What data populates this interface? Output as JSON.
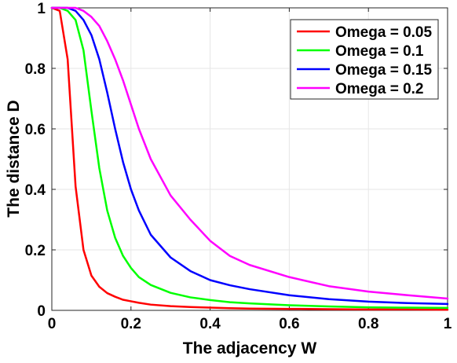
{
  "chart_data": {
    "type": "line",
    "title": "",
    "xlabel": "The adjacency W",
    "ylabel": "The distance D",
    "xlim": [
      0,
      1
    ],
    "ylim": [
      0,
      1
    ],
    "xticks": [
      0,
      0.2,
      0.4,
      0.6,
      0.8,
      1
    ],
    "xtick_labels": [
      "0",
      "0.2",
      "0.4",
      "0.6",
      "0.8",
      "1"
    ],
    "yticks": [
      0,
      0.2,
      0.4,
      0.6,
      0.8,
      1
    ],
    "ytick_labels": [
      "0",
      "0.2",
      "0.4",
      "0.6",
      "0.8",
      "1"
    ],
    "grid": true,
    "legend_position": "top-right",
    "x": [
      0,
      0.02,
      0.04,
      0.06,
      0.08,
      0.1,
      0.12,
      0.14,
      0.16,
      0.18,
      0.2,
      0.22,
      0.25,
      0.3,
      0.35,
      0.4,
      0.45,
      0.5,
      0.6,
      0.7,
      0.8,
      0.9,
      1.0
    ],
    "series": [
      {
        "name": "Omega = 0.05",
        "color": "#ff0000",
        "values": [
          1,
          0.99,
          0.83,
          0.41,
          0.2,
          0.115,
          0.078,
          0.057,
          0.045,
          0.035,
          0.03,
          0.025,
          0.019,
          0.014,
          0.011,
          0.009,
          0.007,
          0.006,
          0.005,
          0.004,
          0.003,
          0.003,
          0.002
        ]
      },
      {
        "name": "Omega = 0.1",
        "color": "#00ff00",
        "values": [
          1,
          1,
          0.99,
          0.96,
          0.86,
          0.66,
          0.47,
          0.33,
          0.24,
          0.18,
          0.14,
          0.11,
          0.084,
          0.058,
          0.043,
          0.034,
          0.027,
          0.023,
          0.017,
          0.013,
          0.01,
          0.009,
          0.008
        ]
      },
      {
        "name": "Omega = 0.15",
        "color": "#0000ff",
        "values": [
          1,
          1,
          1,
          0.99,
          0.96,
          0.91,
          0.83,
          0.72,
          0.6,
          0.49,
          0.4,
          0.33,
          0.25,
          0.175,
          0.13,
          0.1,
          0.083,
          0.07,
          0.05,
          0.037,
          0.029,
          0.024,
          0.021
        ]
      },
      {
        "name": "Omega = 0.2",
        "color": "#ff00ff",
        "values": [
          1,
          1,
          1,
          1,
          0.99,
          0.97,
          0.94,
          0.89,
          0.83,
          0.76,
          0.68,
          0.6,
          0.5,
          0.38,
          0.3,
          0.23,
          0.18,
          0.15,
          0.11,
          0.08,
          0.062,
          0.05,
          0.039
        ]
      }
    ]
  }
}
